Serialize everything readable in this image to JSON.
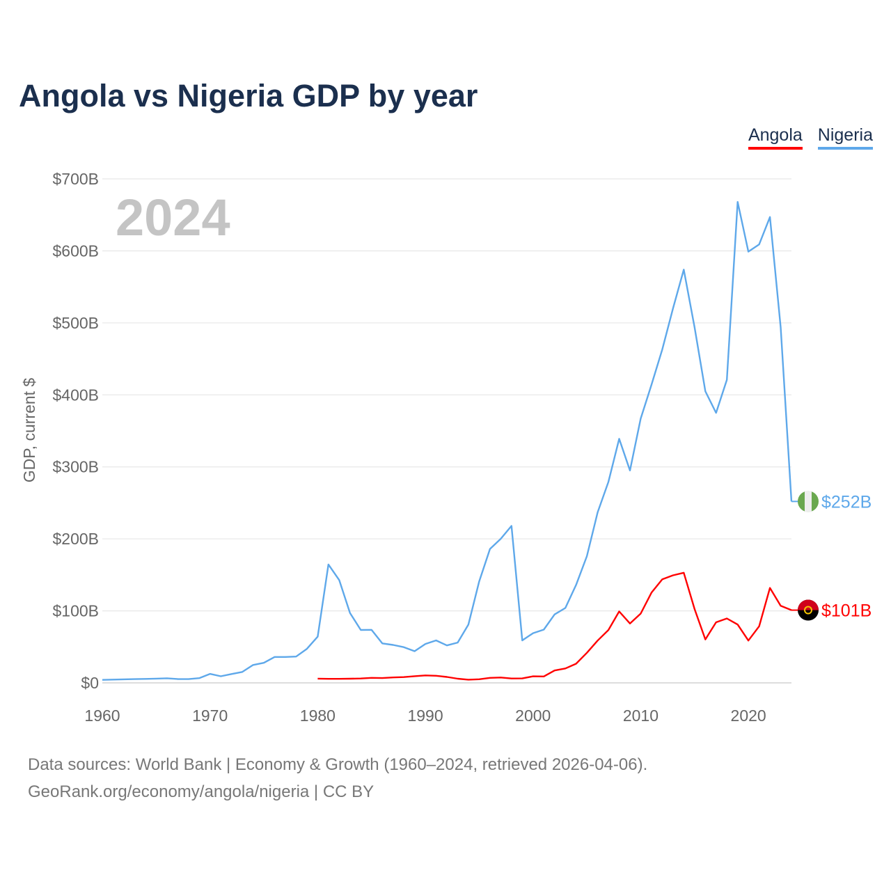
{
  "chart_data": {
    "type": "line",
    "title": "Angola vs Nigeria GDP by year",
    "xlabel": "",
    "ylabel": "GDP, current $",
    "xlim": [
      1960,
      2024
    ],
    "ylim": [
      0,
      700
    ],
    "x_ticks": [
      1960,
      1970,
      1980,
      1990,
      2000,
      2010,
      2020
    ],
    "x_tick_labels": [
      "1960",
      "1970",
      "1980",
      "1990",
      "2000",
      "2010",
      "2020"
    ],
    "y_ticks": [
      0,
      100,
      200,
      300,
      400,
      500,
      600,
      700
    ],
    "y_tick_labels": [
      "$0",
      "$100B",
      "$200B",
      "$300B",
      "$400B",
      "$500B",
      "$600B",
      "$700B"
    ],
    "grid": true,
    "legend_position": "top-right",
    "year_watermark": "2024",
    "series": [
      {
        "name": "Angola",
        "color": "#ff0000",
        "end_label": "$101B",
        "start_year": 1980,
        "values": [
          5.9,
          5.6,
          5.6,
          5.8,
          6.1,
          7.0,
          6.7,
          7.5,
          8.0,
          9.3,
          10.3,
          9.9,
          8.2,
          5.8,
          4.4,
          5.0,
          7.0,
          7.4,
          6.1,
          6.2,
          9.1,
          8.9,
          17.2,
          20.0,
          26.6,
          41.8,
          58.8,
          73.4,
          99.2,
          82.5,
          96.2,
          125.3,
          143.9,
          149.4,
          153.0,
          102.6,
          60.3,
          84.1,
          89.4,
          81.0,
          58.8,
          78.6,
          131.9,
          107.0,
          101
        ]
      },
      {
        "name": "Nigeria",
        "color": "#5ea8ea",
        "end_label": "$252B",
        "start_year": 1960,
        "values": [
          4.2,
          4.5,
          4.9,
          5.2,
          5.5,
          5.9,
          6.4,
          5.3,
          5.2,
          6.6,
          12.5,
          9.2,
          12.3,
          15.2,
          24.8,
          27.8,
          36.0,
          36.0,
          36.5,
          47.3,
          64.2,
          164.5,
          142.8,
          97.1,
          73.5,
          73.7,
          54.8,
          52.7,
          49.6,
          44.0,
          54.0,
          59.0,
          52.0,
          56.0,
          81.0,
          141.0,
          186.0,
          200.0,
          218.0,
          59.0,
          69.0,
          74.0,
          95.0,
          104.0,
          136.0,
          176.0,
          237.0,
          279.0,
          339.0,
          295.0,
          367.0,
          414.0,
          463.0,
          520.0,
          574.0,
          494.0,
          405.0,
          375.0,
          421.0,
          668.0,
          599.0,
          609.0,
          647.0,
          494.0,
          252.0
        ]
      }
    ]
  },
  "footer": {
    "line1": "Data sources: World Bank | Economy & Growth (1960–2024, retrieved 2026-04-06).",
    "line2": "GeoRank.org/economy/angola/nigeria | CC BY"
  }
}
